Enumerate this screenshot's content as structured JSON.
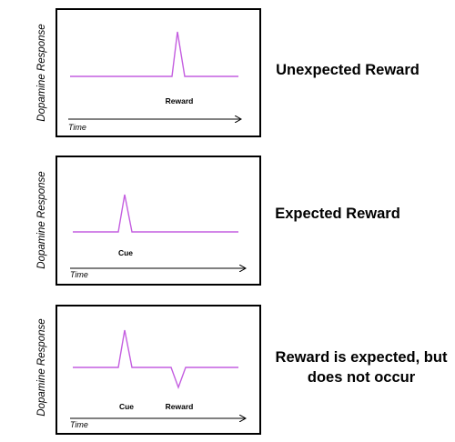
{
  "panels": [
    {
      "title": [
        "Unexpected Reward"
      ],
      "y_label": "Dopamine Response",
      "x_label": "Time",
      "events": [
        "Reward"
      ]
    },
    {
      "title": [
        "Expected Reward"
      ],
      "y_label": "Dopamine Response",
      "x_label": "Time",
      "events": [
        "Cue"
      ]
    },
    {
      "title": [
        "Reward is expected, but",
        "does not occur"
      ],
      "y_label": "Dopamine Response",
      "x_label": "Time",
      "events": [
        "Cue",
        "Reward"
      ]
    }
  ]
}
